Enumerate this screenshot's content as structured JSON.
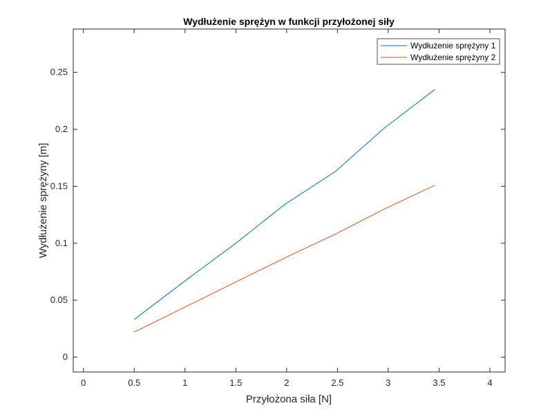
{
  "chart_data": {
    "type": "line",
    "title": "Wydłużenie sprężyn w funkcji przyłożonej siły",
    "xlabel": "Przyłożona siła [N]",
    "ylabel": "Wydłużenie sprężyny [m]",
    "xlim": [
      -0.1,
      4.15
    ],
    "ylim": [
      -0.013,
      0.288
    ],
    "xticks": [
      0,
      0.5,
      1,
      1.5,
      2,
      2.5,
      3,
      3.5,
      4
    ],
    "xtick_labels": [
      "0",
      "0.5",
      "1",
      "1.5",
      "2",
      "2.5",
      "3",
      "3.5",
      "4"
    ],
    "yticks": [
      0,
      0.05,
      0.1,
      0.15,
      0.2,
      0.25
    ],
    "ytick_labels": [
      "0",
      "0.05",
      "0.1",
      "0.15",
      "0.2",
      "0.25"
    ],
    "grid": false,
    "legend_position": "top-right",
    "series": [
      {
        "name": "Wydłużenie sprężyny 1",
        "color": "#0072BD",
        "x": [
          0.5,
          1.0,
          1.5,
          1.98,
          2.48,
          2.96,
          3.46
        ],
        "y": [
          0.033,
          0.067,
          0.1,
          0.134,
          0.163,
          0.201,
          0.235
        ]
      },
      {
        "name": "Wydłużenie sprężyny 2",
        "color": "#D95319",
        "x": [
          0.5,
          1.0,
          1.5,
          1.98,
          2.48,
          2.96,
          3.46
        ],
        "y": [
          0.022,
          0.044,
          0.066,
          0.087,
          0.108,
          0.13,
          0.151
        ]
      }
    ]
  }
}
